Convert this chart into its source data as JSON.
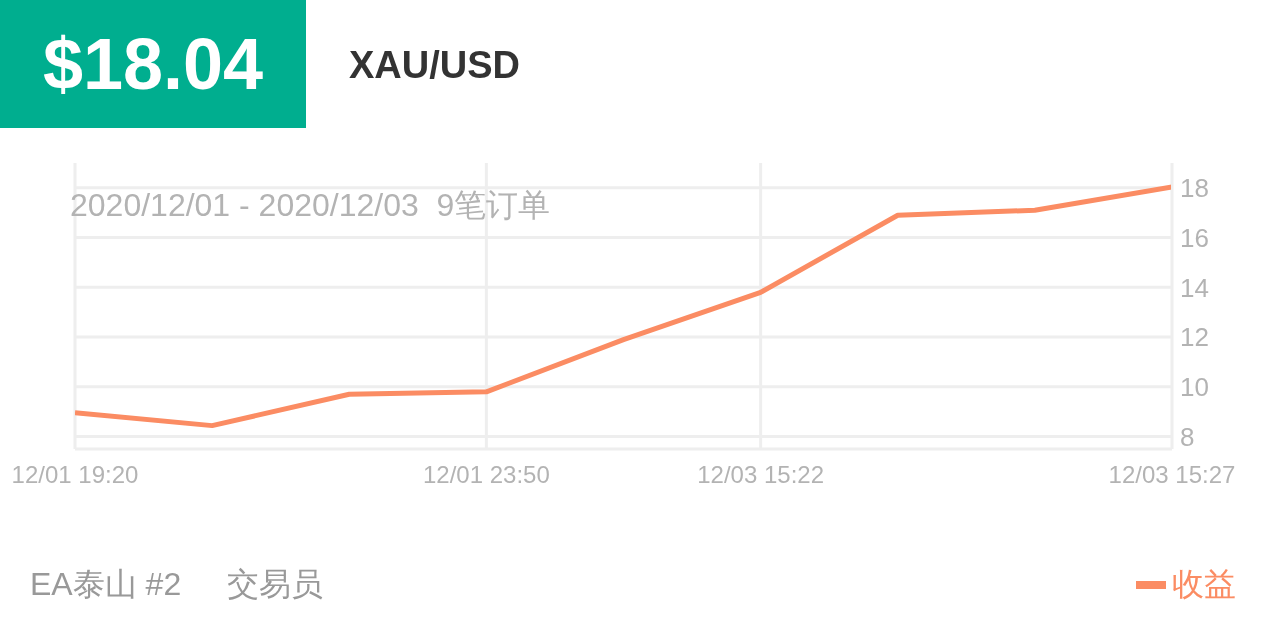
{
  "chart_data": {
    "type": "line",
    "title": "$18.04",
    "subtitle": "XAU/USD",
    "annotations": [
      "2020/12/01 - 2020/12/03  9笔订单",
      "EA泰山 #2",
      "交易员"
    ],
    "categories": [
      "12/01 19:20",
      null,
      null,
      "12/01 23:50",
      null,
      "12/03 15:22",
      null,
      null,
      "12/03 15:27"
    ],
    "series": [
      {
        "name": "收益",
        "color": "#fb8c63",
        "values": [
          8.96,
          8.44,
          9.7,
          9.8,
          11.9,
          13.8,
          16.9,
          17.1,
          18.04
        ]
      }
    ],
    "ylim": [
      7.5,
      19
    ],
    "yticks": [
      8,
      10,
      12,
      14,
      16,
      18
    ],
    "grid": true,
    "legend": "bottom right",
    "marker": "none",
    "line_style": "solid"
  }
}
